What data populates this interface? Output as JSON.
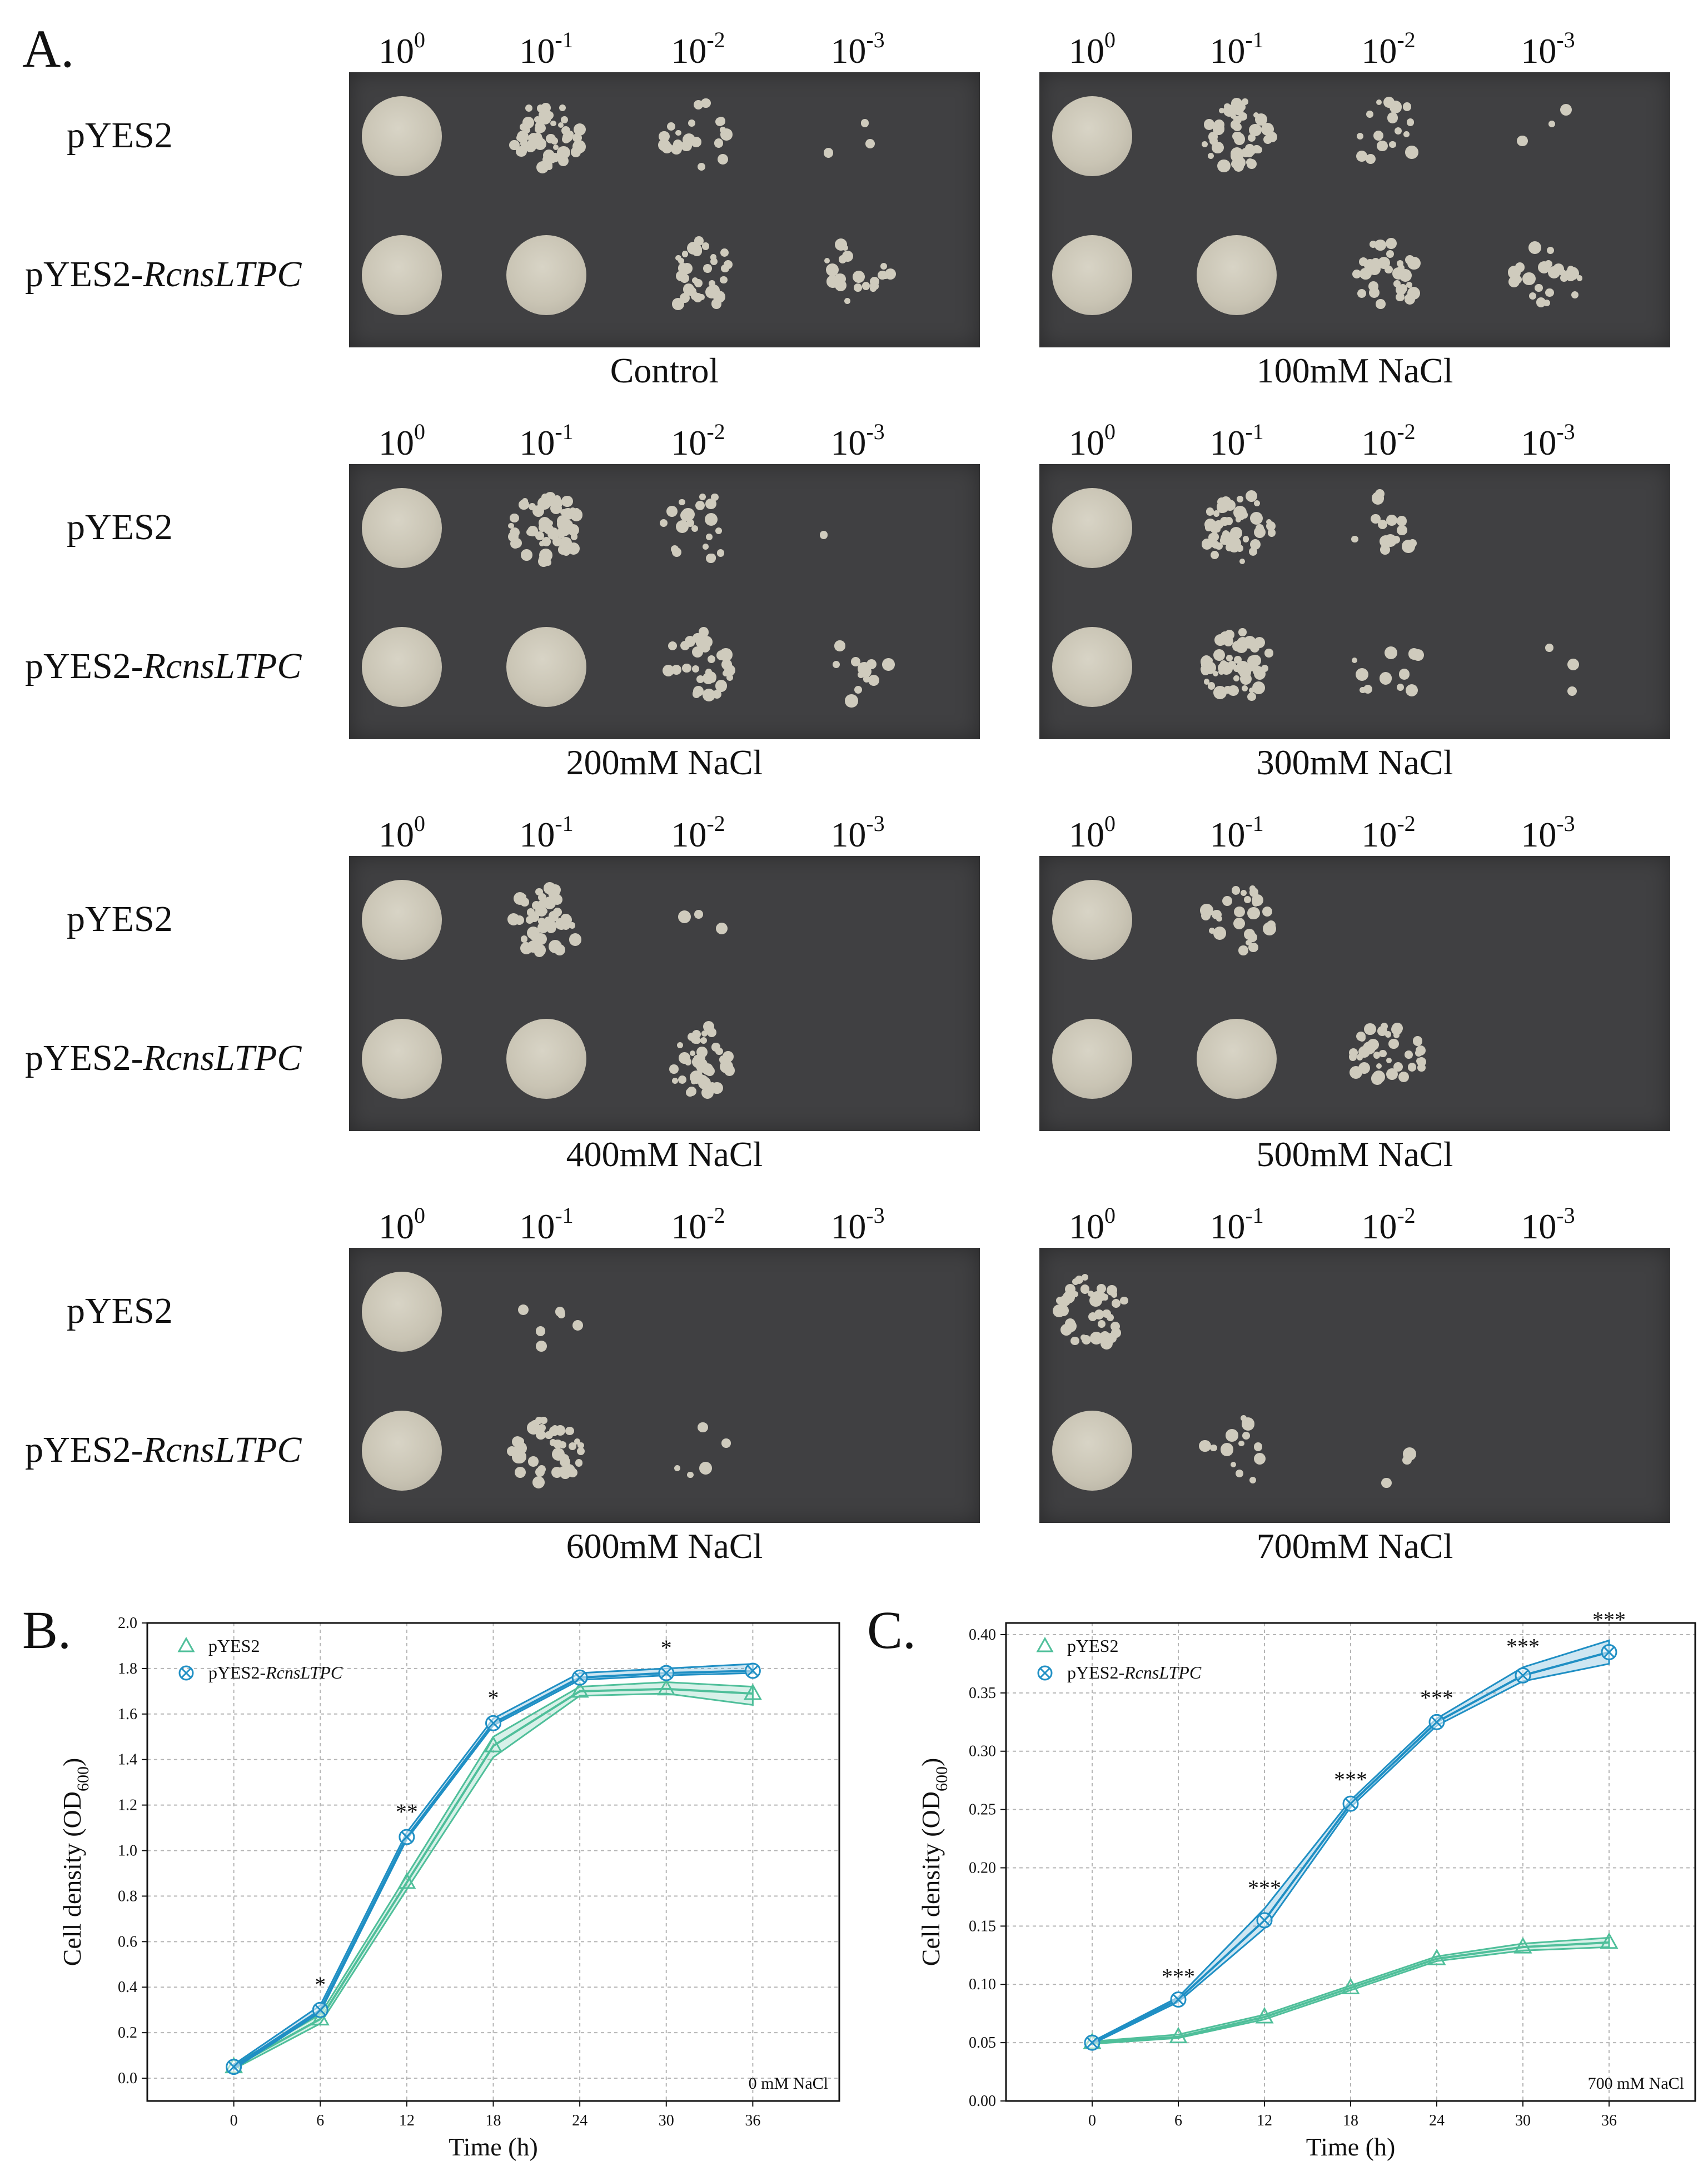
{
  "figure": {
    "panel_a": {
      "label": "A.",
      "dilutions": [
        {
          "base": "10",
          "exp": "0"
        },
        {
          "base": "10",
          "exp": "-1"
        },
        {
          "base": "10",
          "exp": "-2"
        },
        {
          "base": "10",
          "exp": "-3"
        }
      ],
      "strains": [
        {
          "prefix": "pYES2",
          "italic": ""
        },
        {
          "prefix": "pYES2-",
          "italic": "RcnsLTPC"
        }
      ],
      "conditions": [
        "Control",
        "100mM NaCl",
        "200mM NaCl",
        "300mM NaCl",
        "400mM NaCl",
        "500mM NaCl",
        "600mM NaCl",
        "700mM NaCl"
      ],
      "growth": [
        [
          [
            1.0,
            0.85,
            0.35,
            0.05
          ],
          [
            1.0,
            1.0,
            0.55,
            0.35
          ]
        ],
        [
          [
            1.0,
            0.85,
            0.3,
            0.05
          ],
          [
            1.0,
            1.0,
            0.55,
            0.4
          ]
        ],
        [
          [
            1.0,
            0.9,
            0.35,
            0.02
          ],
          [
            1.0,
            1.0,
            0.6,
            0.2
          ]
        ],
        [
          [
            1.0,
            0.85,
            0.25,
            0.0
          ],
          [
            1.0,
            0.95,
            0.2,
            0.05
          ]
        ],
        [
          [
            1.0,
            0.8,
            0.05,
            0.0
          ],
          [
            1.0,
            1.0,
            0.7,
            0.0
          ]
        ],
        [
          [
            1.0,
            0.45,
            0.0,
            0.0
          ],
          [
            1.0,
            1.0,
            0.6,
            0.0
          ]
        ],
        [
          [
            1.0,
            0.1,
            0.0,
            0.0
          ],
          [
            1.0,
            0.7,
            0.08,
            0.0
          ]
        ],
        [
          [
            0.7,
            0.0,
            0.0,
            0.0
          ],
          [
            1.0,
            0.25,
            0.05,
            0.0
          ]
        ]
      ]
    },
    "colors": {
      "pyes2": "#4fbf9a",
      "rcnsltpc": "#1f8fc4"
    }
  },
  "chart_data": [
    {
      "panel_label": "B.",
      "type": "line",
      "x": [
        0,
        6,
        12,
        18,
        24,
        30,
        36
      ],
      "xlabel": "Time (h)",
      "ylabel_main": "Cell density (OD",
      "ylabel_sub": "600",
      "ylabel_end": ")",
      "ylim": [
        -0.1,
        2.0
      ],
      "yticks": [
        "0.0",
        "0.2",
        "0.4",
        "0.6",
        "0.8",
        "1.0",
        "1.2",
        "1.4",
        "1.6",
        "1.8",
        "2.0"
      ],
      "xticks": [
        "0",
        "6",
        "12",
        "18",
        "24",
        "30",
        "36"
      ],
      "grid": true,
      "legend_position": "top-left",
      "annotation": "0 mM NaCl",
      "series": [
        {
          "name": "pYES2",
          "name_italic": "",
          "values": [
            0.05,
            0.26,
            0.86,
            1.46,
            1.7,
            1.71,
            1.69
          ],
          "band_low": [
            0.04,
            0.24,
            0.83,
            1.41,
            1.68,
            1.69,
            1.64
          ],
          "band_high": [
            0.06,
            0.28,
            0.89,
            1.5,
            1.72,
            1.74,
            1.72
          ],
          "marker": "triangle"
        },
        {
          "name": "pYES2-",
          "name_italic": "RcnsLTPC",
          "values": [
            0.05,
            0.3,
            1.06,
            1.56,
            1.76,
            1.78,
            1.79
          ],
          "band_low": [
            0.04,
            0.29,
            1.05,
            1.55,
            1.75,
            1.77,
            1.78
          ],
          "band_high": [
            0.06,
            0.32,
            1.08,
            1.58,
            1.78,
            1.8,
            1.82
          ],
          "marker": "circle-x"
        }
      ],
      "significance": [
        "",
        "*",
        "**",
        "*",
        "",
        "*",
        ""
      ]
    },
    {
      "panel_label": "C.",
      "type": "line",
      "x": [
        0,
        6,
        12,
        18,
        24,
        30,
        36
      ],
      "xlabel": "Time (h)",
      "ylabel_main": "Cell density (OD",
      "ylabel_sub": "600",
      "ylabel_end": ")",
      "ylim": [
        0.0,
        0.41
      ],
      "yticks": [
        "0.00",
        "0.05",
        "0.10",
        "0.15",
        "0.20",
        "0.25",
        "0.30",
        "0.35",
        "0.40"
      ],
      "xticks": [
        "0",
        "6",
        "12",
        "18",
        "24",
        "30",
        "36"
      ],
      "grid": true,
      "legend_position": "top-left",
      "annotation": "700 mM NaCl",
      "series": [
        {
          "name": "pYES2",
          "name_italic": "",
          "values": [
            0.05,
            0.055,
            0.072,
            0.097,
            0.122,
            0.132,
            0.136
          ],
          "band_low": [
            0.049,
            0.054,
            0.07,
            0.095,
            0.12,
            0.129,
            0.132
          ],
          "band_high": [
            0.051,
            0.057,
            0.074,
            0.099,
            0.124,
            0.135,
            0.14
          ],
          "marker": "triangle"
        },
        {
          "name": "pYES2-",
          "name_italic": "RcnsLTPC",
          "values": [
            0.05,
            0.087,
            0.155,
            0.255,
            0.325,
            0.365,
            0.385
          ],
          "band_low": [
            0.049,
            0.085,
            0.148,
            0.252,
            0.322,
            0.36,
            0.375
          ],
          "band_high": [
            0.051,
            0.089,
            0.165,
            0.258,
            0.328,
            0.372,
            0.395
          ],
          "marker": "circle-x"
        }
      ],
      "significance": [
        "",
        "***",
        "***",
        "***",
        "***",
        "***",
        "***"
      ]
    }
  ]
}
